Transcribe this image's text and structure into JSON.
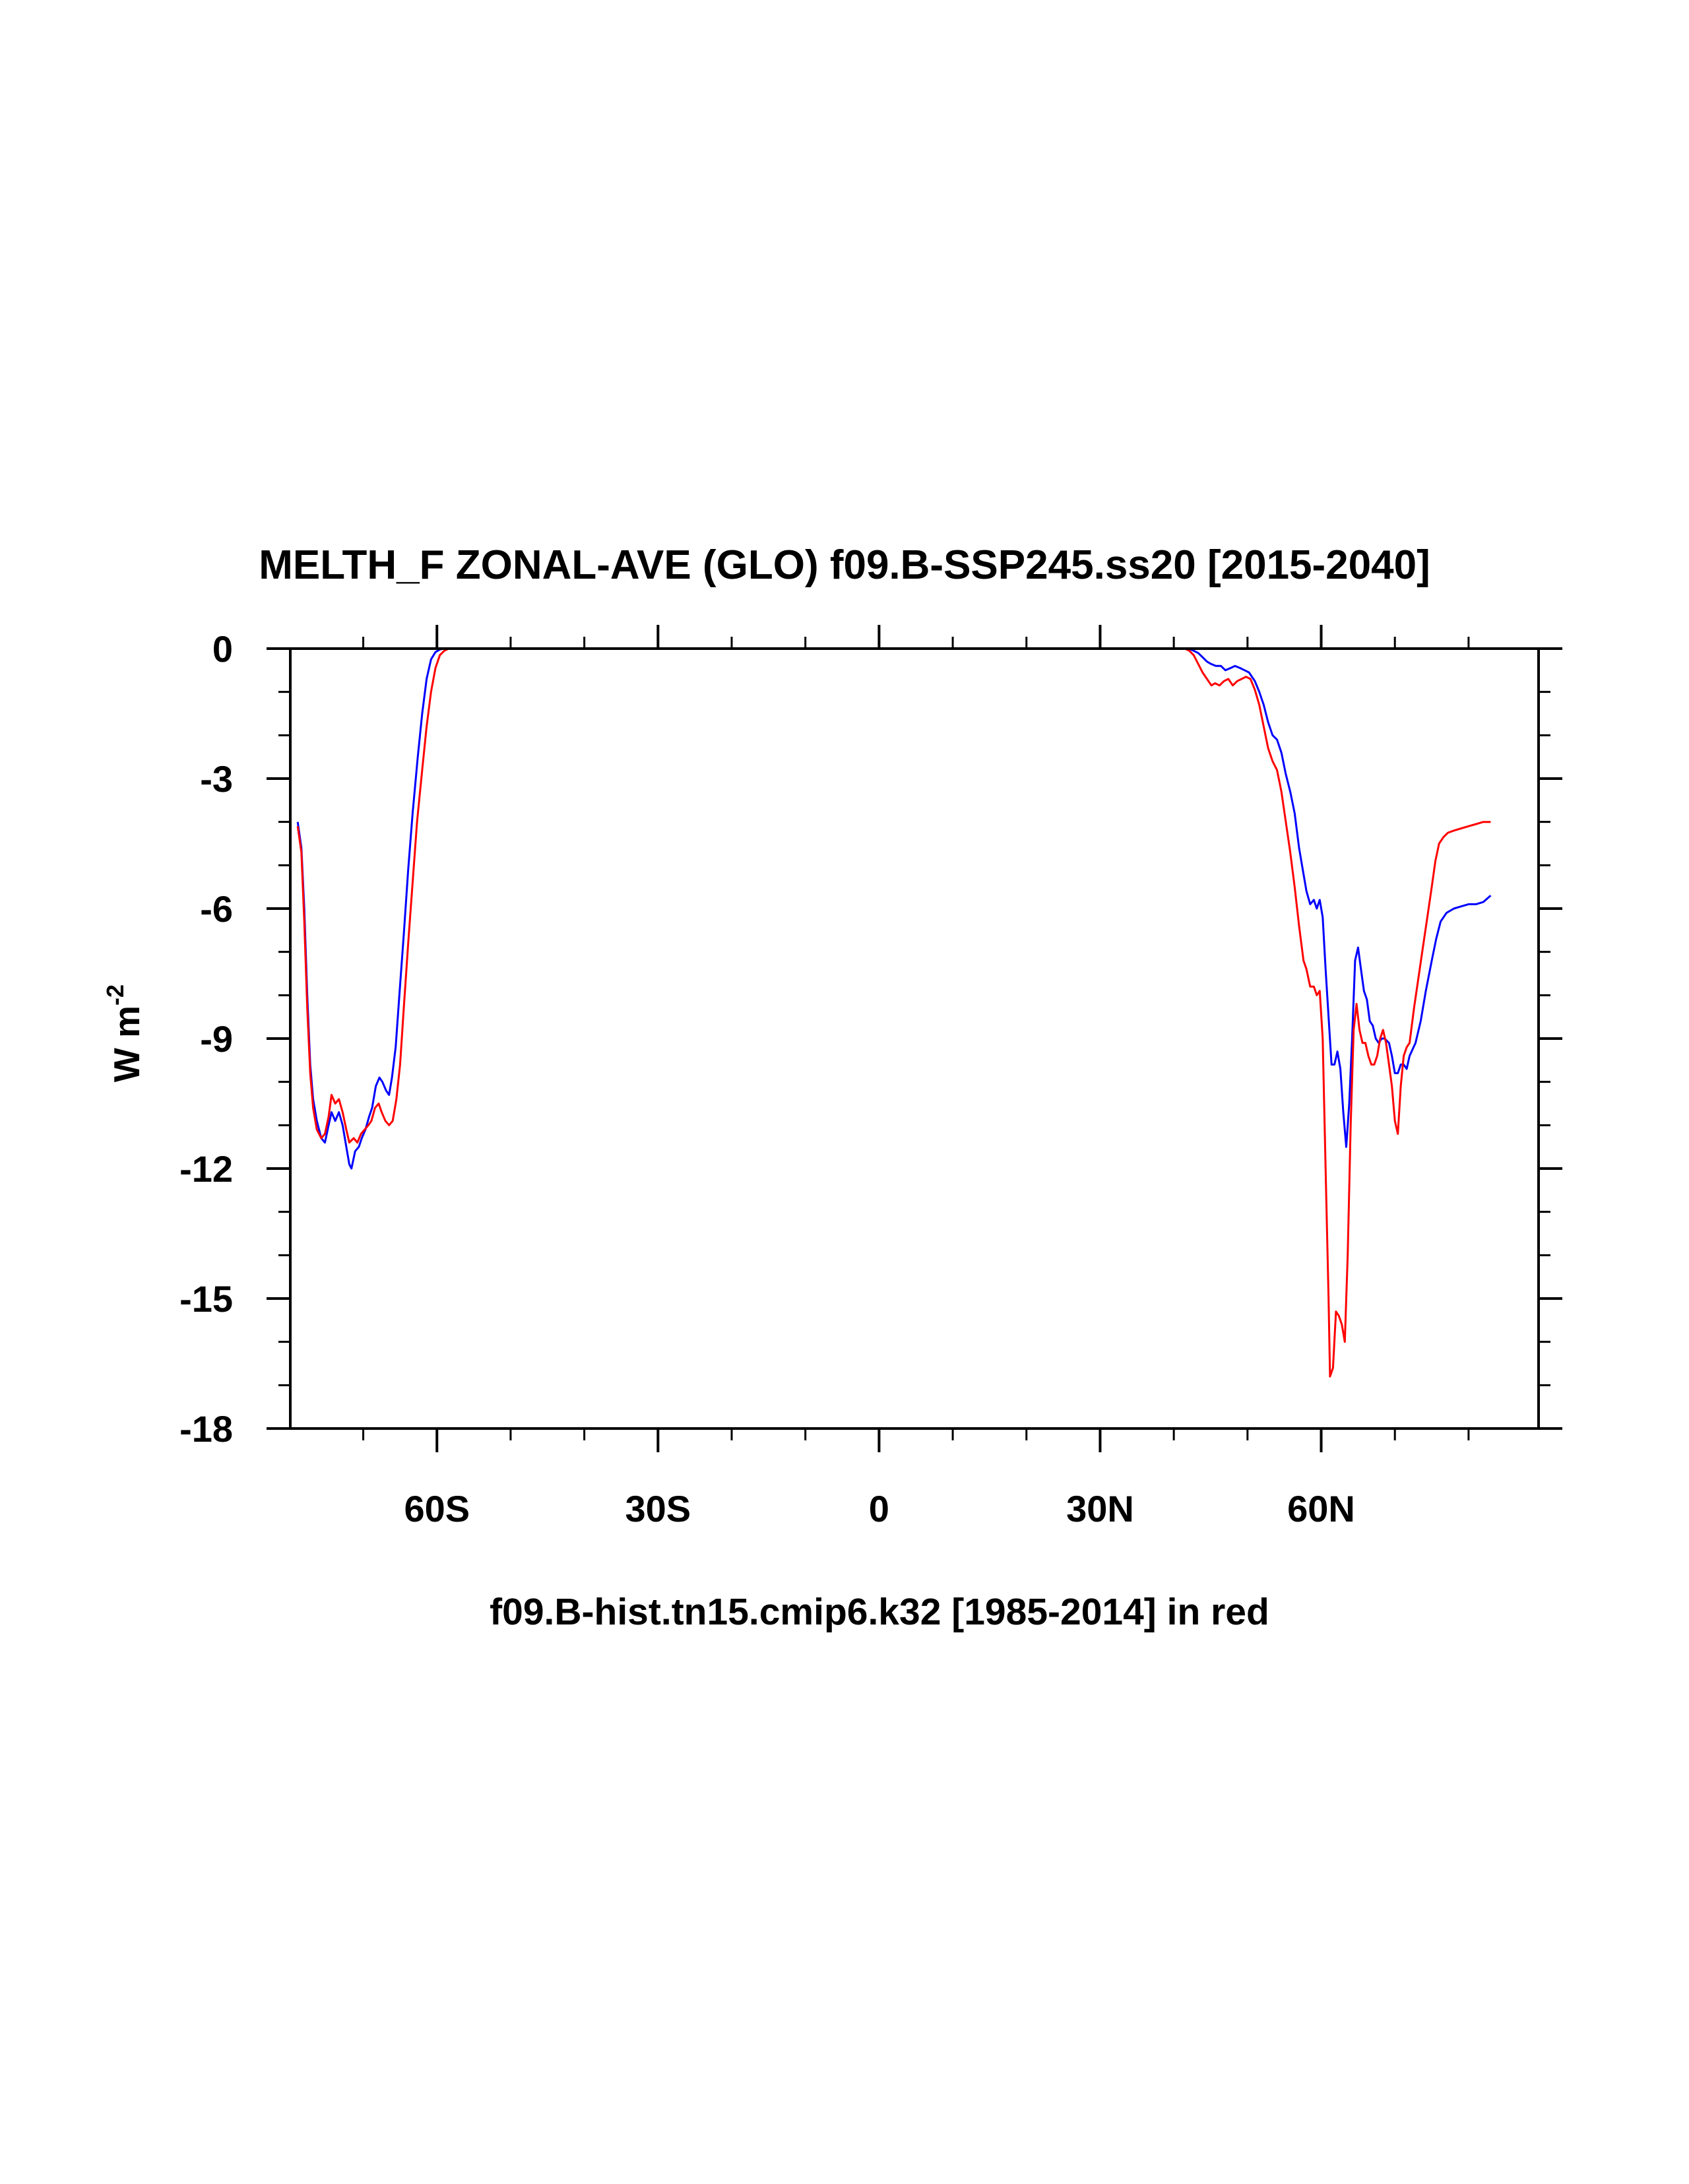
{
  "chart_data": {
    "type": "line",
    "title": "MELTH_F ZONAL-AVE (GLO) f09.B-SSP245.ss20 [2015-2040]",
    "xlabel": "f09.B-hist.tn15.cmip6.k32 [1985-2014] in red",
    "ylabel": "W m",
    "ylabel_sup": "-2",
    "xlim": [
      -79.9,
      89.5
    ],
    "ylim": [
      -18,
      0
    ],
    "x_ticks": [
      {
        "value": -60,
        "label": "60S"
      },
      {
        "value": -30,
        "label": "30S"
      },
      {
        "value": 0,
        "label": "0"
      },
      {
        "value": 30,
        "label": "30N"
      },
      {
        "value": 60,
        "label": "60N"
      }
    ],
    "x_minor_step": 10,
    "y_ticks": [
      {
        "value": 0,
        "label": "0"
      },
      {
        "value": -3,
        "label": "-3"
      },
      {
        "value": -6,
        "label": "-6"
      },
      {
        "value": -9,
        "label": "-9"
      },
      {
        "value": -12,
        "label": "-12"
      },
      {
        "value": -15,
        "label": "-15"
      },
      {
        "value": -18,
        "label": "-18"
      }
    ],
    "y_minor_step": 1,
    "grid": false,
    "series": [
      {
        "color": "#0000ff",
        "points": [
          [
            -78.9,
            -4.0
          ],
          [
            -78.4,
            -4.6
          ],
          [
            -78.0,
            -6.0
          ],
          [
            -77.6,
            -8.0
          ],
          [
            -77.2,
            -9.6
          ],
          [
            -76.8,
            -10.4
          ],
          [
            -76.3,
            -10.9
          ],
          [
            -75.7,
            -11.3
          ],
          [
            -75.2,
            -11.4
          ],
          [
            -74.7,
            -11.0
          ],
          [
            -74.3,
            -10.7
          ],
          [
            -73.8,
            -10.9
          ],
          [
            -73.3,
            -10.7
          ],
          [
            -72.8,
            -11.0
          ],
          [
            -72.3,
            -11.5
          ],
          [
            -71.9,
            -11.9
          ],
          [
            -71.6,
            -12.0
          ],
          [
            -71.1,
            -11.6
          ],
          [
            -70.6,
            -11.5
          ],
          [
            -70.2,
            -11.3
          ],
          [
            -69.7,
            -11.1
          ],
          [
            -69.2,
            -10.8
          ],
          [
            -68.8,
            -10.6
          ],
          [
            -68.3,
            -10.1
          ],
          [
            -67.8,
            -9.9
          ],
          [
            -67.4,
            -10.0
          ],
          [
            -66.9,
            -10.2
          ],
          [
            -66.5,
            -10.3
          ],
          [
            -66.1,
            -9.9
          ],
          [
            -65.6,
            -9.2
          ],
          [
            -65.1,
            -8.0
          ],
          [
            -64.5,
            -6.6
          ],
          [
            -63.9,
            -5.1
          ],
          [
            -63.3,
            -3.8
          ],
          [
            -62.6,
            -2.5
          ],
          [
            -62.0,
            -1.5
          ],
          [
            -61.4,
            -0.7
          ],
          [
            -60.8,
            -0.25
          ],
          [
            -60.2,
            -0.08
          ],
          [
            -59.6,
            -0.02
          ],
          [
            -59.0,
            0.0
          ],
          [
            -58.0,
            0.0
          ],
          [
            38.0,
            0.0
          ],
          [
            42.0,
            0.0
          ],
          [
            42.7,
            -0.05
          ],
          [
            43.3,
            -0.1
          ],
          [
            43.9,
            -0.2
          ],
          [
            44.5,
            -0.3
          ],
          [
            45.0,
            -0.35
          ],
          [
            45.7,
            -0.4
          ],
          [
            46.4,
            -0.4
          ],
          [
            47.0,
            -0.5
          ],
          [
            47.7,
            -0.45
          ],
          [
            48.3,
            -0.4
          ],
          [
            49.0,
            -0.45
          ],
          [
            49.6,
            -0.5
          ],
          [
            50.2,
            -0.55
          ],
          [
            51.0,
            -0.75
          ],
          [
            51.6,
            -1.0
          ],
          [
            52.2,
            -1.3
          ],
          [
            52.8,
            -1.7
          ],
          [
            53.4,
            -2.0
          ],
          [
            54.0,
            -2.1
          ],
          [
            54.6,
            -2.4
          ],
          [
            55.2,
            -2.9
          ],
          [
            55.8,
            -3.3
          ],
          [
            56.4,
            -3.8
          ],
          [
            57.0,
            -4.6
          ],
          [
            57.6,
            -5.2
          ],
          [
            58.0,
            -5.6
          ],
          [
            58.5,
            -5.9
          ],
          [
            59.0,
            -5.8
          ],
          [
            59.4,
            -6.0
          ],
          [
            59.8,
            -5.8
          ],
          [
            60.2,
            -6.2
          ],
          [
            60.6,
            -7.4
          ],
          [
            61.0,
            -8.5
          ],
          [
            61.4,
            -9.6
          ],
          [
            61.8,
            -9.6
          ],
          [
            62.2,
            -9.3
          ],
          [
            62.6,
            -9.7
          ],
          [
            63.0,
            -10.7
          ],
          [
            63.4,
            -11.5
          ],
          [
            63.8,
            -10.5
          ],
          [
            64.2,
            -9.0
          ],
          [
            64.6,
            -7.2
          ],
          [
            65.0,
            -6.9
          ],
          [
            65.4,
            -7.4
          ],
          [
            65.8,
            -7.9
          ],
          [
            66.2,
            -8.1
          ],
          [
            66.6,
            -8.6
          ],
          [
            67.0,
            -8.7
          ],
          [
            67.4,
            -9.0
          ],
          [
            67.8,
            -9.1
          ],
          [
            68.2,
            -9.0
          ],
          [
            68.6,
            -9.0
          ],
          [
            69.2,
            -9.1
          ],
          [
            69.6,
            -9.4
          ],
          [
            70.0,
            -9.8
          ],
          [
            70.4,
            -9.8
          ],
          [
            70.8,
            -9.6
          ],
          [
            71.2,
            -9.6
          ],
          [
            71.6,
            -9.7
          ],
          [
            72.0,
            -9.4
          ],
          [
            72.8,
            -9.1
          ],
          [
            73.5,
            -8.6
          ],
          [
            74.2,
            -7.9
          ],
          [
            75.0,
            -7.2
          ],
          [
            75.6,
            -6.7
          ],
          [
            76.2,
            -6.3
          ],
          [
            77.0,
            -6.1
          ],
          [
            78.0,
            -6.0
          ],
          [
            79.0,
            -5.95
          ],
          [
            80.0,
            -5.9
          ],
          [
            81.0,
            -5.9
          ],
          [
            82.0,
            -5.85
          ],
          [
            83.0,
            -5.7
          ]
        ]
      },
      {
        "color": "#ff0000",
        "points": [
          [
            -78.9,
            -4.1
          ],
          [
            -78.4,
            -4.7
          ],
          [
            -78.0,
            -6.3
          ],
          [
            -77.6,
            -8.3
          ],
          [
            -77.2,
            -9.8
          ],
          [
            -76.8,
            -10.6
          ],
          [
            -76.3,
            -11.1
          ],
          [
            -75.7,
            -11.3
          ],
          [
            -75.2,
            -11.2
          ],
          [
            -74.7,
            -10.8
          ],
          [
            -74.3,
            -10.3
          ],
          [
            -73.8,
            -10.5
          ],
          [
            -73.3,
            -10.4
          ],
          [
            -72.8,
            -10.7
          ],
          [
            -72.3,
            -11.1
          ],
          [
            -71.9,
            -11.4
          ],
          [
            -71.3,
            -11.3
          ],
          [
            -70.8,
            -11.4
          ],
          [
            -70.3,
            -11.2
          ],
          [
            -69.8,
            -11.1
          ],
          [
            -69.3,
            -11.0
          ],
          [
            -68.9,
            -10.9
          ],
          [
            -68.4,
            -10.6
          ],
          [
            -67.9,
            -10.5
          ],
          [
            -67.5,
            -10.7
          ],
          [
            -67.0,
            -10.9
          ],
          [
            -66.5,
            -11.0
          ],
          [
            -66.0,
            -10.9
          ],
          [
            -65.5,
            -10.4
          ],
          [
            -65.0,
            -9.6
          ],
          [
            -64.5,
            -8.3
          ],
          [
            -63.9,
            -6.8
          ],
          [
            -63.3,
            -5.4
          ],
          [
            -62.7,
            -4.0
          ],
          [
            -62.0,
            -2.8
          ],
          [
            -61.4,
            -1.8
          ],
          [
            -60.8,
            -1.0
          ],
          [
            -60.2,
            -0.45
          ],
          [
            -59.6,
            -0.15
          ],
          [
            -59.0,
            -0.05
          ],
          [
            -58.4,
            0.0
          ],
          [
            -57.5,
            0.0
          ],
          [
            38.0,
            0.0
          ],
          [
            41.5,
            0.0
          ],
          [
            42.1,
            -0.05
          ],
          [
            42.7,
            -0.15
          ],
          [
            43.3,
            -0.35
          ],
          [
            43.9,
            -0.55
          ],
          [
            44.5,
            -0.7
          ],
          [
            45.1,
            -0.85
          ],
          [
            45.6,
            -0.8
          ],
          [
            46.2,
            -0.85
          ],
          [
            46.8,
            -0.75
          ],
          [
            47.4,
            -0.7
          ],
          [
            48.0,
            -0.85
          ],
          [
            48.6,
            -0.75
          ],
          [
            49.2,
            -0.7
          ],
          [
            49.8,
            -0.65
          ],
          [
            50.4,
            -0.7
          ],
          [
            51.0,
            -0.95
          ],
          [
            51.6,
            -1.3
          ],
          [
            52.2,
            -1.8
          ],
          [
            52.8,
            -2.3
          ],
          [
            53.4,
            -2.6
          ],
          [
            54.0,
            -2.8
          ],
          [
            54.6,
            -3.3
          ],
          [
            55.2,
            -4.0
          ],
          [
            55.8,
            -4.7
          ],
          [
            56.4,
            -5.5
          ],
          [
            57.0,
            -6.4
          ],
          [
            57.6,
            -7.2
          ],
          [
            58.0,
            -7.4
          ],
          [
            58.5,
            -7.8
          ],
          [
            59.0,
            -7.8
          ],
          [
            59.4,
            -8.0
          ],
          [
            59.8,
            -7.9
          ],
          [
            60.2,
            -9.0
          ],
          [
            60.6,
            -12.0
          ],
          [
            61.0,
            -15.0
          ],
          [
            61.2,
            -16.8
          ],
          [
            61.6,
            -16.6
          ],
          [
            62.0,
            -15.3
          ],
          [
            62.4,
            -15.4
          ],
          [
            62.8,
            -15.6
          ],
          [
            63.2,
            -16.0
          ],
          [
            63.6,
            -14.0
          ],
          [
            64.0,
            -11.0
          ],
          [
            64.4,
            -8.8
          ],
          [
            64.8,
            -8.2
          ],
          [
            65.2,
            -8.8
          ],
          [
            65.6,
            -9.1
          ],
          [
            66.0,
            -9.1
          ],
          [
            66.4,
            -9.4
          ],
          [
            66.8,
            -9.6
          ],
          [
            67.2,
            -9.6
          ],
          [
            67.6,
            -9.4
          ],
          [
            68.0,
            -9.0
          ],
          [
            68.4,
            -8.8
          ],
          [
            68.8,
            -9.1
          ],
          [
            69.2,
            -9.6
          ],
          [
            69.6,
            -10.1
          ],
          [
            70.0,
            -10.9
          ],
          [
            70.4,
            -11.2
          ],
          [
            70.8,
            -10.1
          ],
          [
            71.2,
            -9.4
          ],
          [
            71.6,
            -9.2
          ],
          [
            72.0,
            -9.1
          ],
          [
            72.6,
            -8.3
          ],
          [
            73.2,
            -7.6
          ],
          [
            73.8,
            -6.9
          ],
          [
            74.4,
            -6.2
          ],
          [
            75.0,
            -5.5
          ],
          [
            75.5,
            -4.9
          ],
          [
            76.0,
            -4.5
          ],
          [
            76.6,
            -4.35
          ],
          [
            77.2,
            -4.25
          ],
          [
            78.0,
            -4.2
          ],
          [
            79.0,
            -4.15
          ],
          [
            80.0,
            -4.1
          ],
          [
            81.0,
            -4.05
          ],
          [
            82.0,
            -4.0
          ],
          [
            83.0,
            -4.0
          ]
        ]
      }
    ]
  }
}
